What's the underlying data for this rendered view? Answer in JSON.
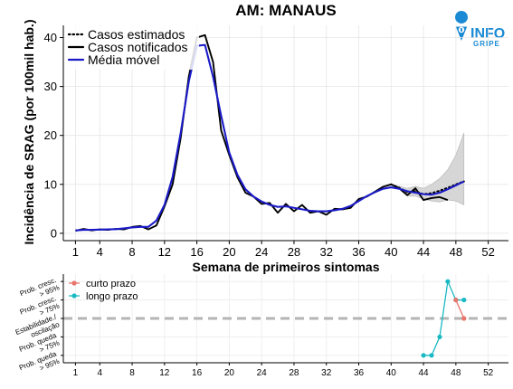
{
  "brand": {
    "logo_text_top": "INFO",
    "logo_text_bottom": "GRIPE",
    "pin_color": "#1a8ad4"
  },
  "chart_data": [
    {
      "type": "line",
      "title": "AM: MANAUS",
      "xlabel": "Semana de primeiros sintomas",
      "ylabel": "Incidência de SRAG (por 100mil hab.)",
      "xlim": [
        -0.5,
        54.5
      ],
      "ylim": [
        -1.5,
        42.5
      ],
      "xticks": [
        1,
        4,
        8,
        12,
        16,
        20,
        24,
        28,
        32,
        36,
        40,
        44,
        48,
        52
      ],
      "yticks": [
        0,
        10,
        20,
        30,
        40
      ],
      "grid": true,
      "legend": "top-left",
      "series": [
        {
          "name": "Casos notificados",
          "color": "#000000",
          "x": [
            1,
            2,
            3,
            4,
            5,
            6,
            7,
            8,
            9,
            10,
            11,
            12,
            13,
            14,
            15,
            16,
            17,
            18,
            19,
            20,
            21,
            22,
            23,
            24,
            25,
            26,
            27,
            28,
            29,
            30,
            31,
            32,
            33,
            34,
            35,
            36,
            37,
            38,
            39,
            40,
            41,
            42,
            43,
            44,
            45,
            46,
            47
          ],
          "y": [
            0.5,
            0.9,
            0.6,
            0.8,
            0.7,
            0.9,
            0.8,
            1.3,
            1.5,
            0.8,
            1.6,
            5.5,
            10.0,
            19.5,
            32.0,
            40.0,
            40.5,
            35.0,
            21.0,
            16.0,
            11.5,
            8.3,
            7.5,
            6.0,
            6.2,
            4.2,
            6.0,
            4.5,
            5.8,
            4.2,
            4.5,
            3.8,
            5.0,
            4.9,
            5.2,
            7.0,
            7.5,
            8.5,
            9.5,
            10.0,
            9.2,
            7.8,
            9.2,
            6.8,
            7.2,
            7.4,
            6.8
          ]
        },
        {
          "name": "Média móvel",
          "color": "#1a1ac8",
          "x": [
            1,
            2,
            3,
            4,
            5,
            6,
            7,
            8,
            9,
            10,
            11,
            12,
            13,
            14,
            15,
            16,
            17,
            18,
            19,
            20,
            21,
            22,
            23,
            24,
            25,
            26,
            27,
            28,
            29,
            30,
            31,
            32,
            33,
            34,
            35,
            36,
            37,
            38,
            39,
            40,
            41,
            42,
            43,
            44,
            45,
            46,
            47,
            48,
            49
          ],
          "y": [
            0.6,
            0.7,
            0.7,
            0.75,
            0.8,
            0.85,
            1.0,
            1.2,
            1.3,
            1.3,
            2.6,
            5.8,
            11.5,
            20.5,
            31.0,
            38.3,
            38.5,
            32.0,
            24.0,
            16.5,
            12.0,
            9.0,
            7.5,
            6.5,
            5.8,
            5.4,
            5.5,
            5.2,
            4.9,
            4.6,
            4.5,
            4.5,
            4.7,
            5.0,
            5.6,
            6.6,
            7.6,
            8.4,
            9.1,
            9.4,
            9.1,
            8.6,
            8.3,
            8.0,
            7.9,
            8.3,
            9.0,
            9.8,
            10.6
          ]
        },
        {
          "name": "Casos estimados",
          "color": "#000000",
          "x": [
            40,
            41,
            42,
            43,
            44,
            45,
            46,
            47,
            48,
            49
          ],
          "y": [
            10.0,
            9.3,
            8.4,
            8.6,
            8.0,
            8.2,
            8.7,
            9.3,
            10.0,
            10.6
          ],
          "band_lower": [
            10.0,
            9.0,
            7.6,
            7.6,
            7.0,
            6.6,
            6.4,
            6.8,
            6.6,
            5.8
          ],
          "band_upper": [
            10.0,
            9.6,
            9.2,
            9.6,
            9.2,
            10.0,
            11.2,
            13.0,
            16.0,
            20.5
          ]
        }
      ]
    },
    {
      "type": "line",
      "title": "",
      "xlabel": "",
      "ylabel": "",
      "xlim": [
        -0.5,
        54.5
      ],
      "ylim": [
        0.6,
        5.4
      ],
      "xticks": [
        1,
        4,
        8,
        12,
        16,
        20,
        24,
        28,
        32,
        36,
        40,
        44,
        48,
        52
      ],
      "categories": [
        "Prob. queda > 95%",
        "Prob. queda > 75%",
        "Estabilidade./ oscilação",
        "Prob. cresc. > 75%",
        "Prob. cresc. > 95%"
      ],
      "reference_level": 3,
      "grid": true,
      "legend": "top-left",
      "series": [
        {
          "name": "curto prazo",
          "color": "#e8736a",
          "x": [
            48,
            49
          ],
          "y": [
            4,
            3
          ]
        },
        {
          "name": "longo prazo",
          "color": "#19b9c3",
          "x": [
            44,
            45,
            46,
            47,
            48,
            49
          ],
          "y": [
            1,
            1,
            2,
            5,
            4,
            4
          ]
        }
      ]
    }
  ]
}
